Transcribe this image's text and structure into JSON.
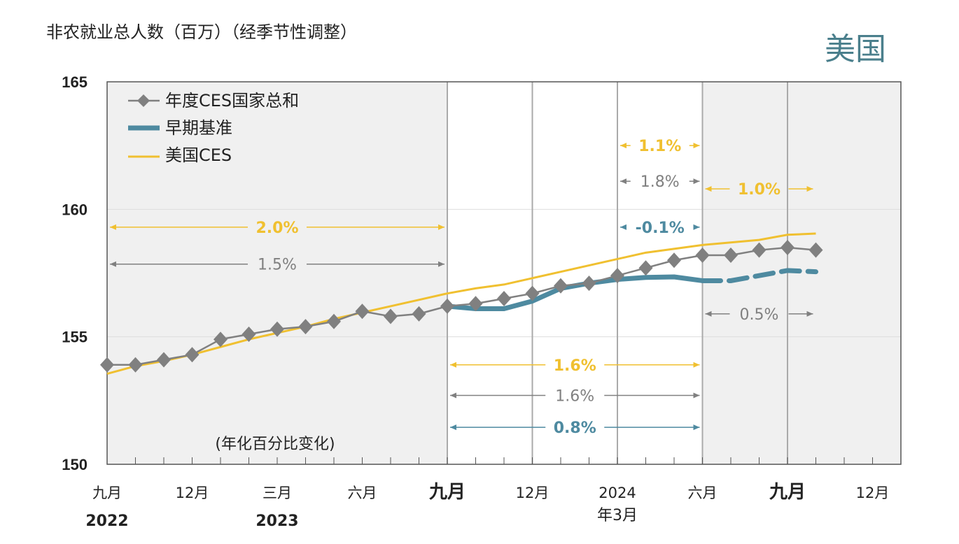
{
  "header": {
    "ytitle": "非农就业总人数（百万）（经季节性调整）",
    "country": "美国"
  },
  "chart_data": {
    "type": "line",
    "ylim": [
      150,
      165
    ],
    "yticks": [
      "150",
      "155",
      "160",
      "165"
    ],
    "x_months": [
      "2022-09",
      "2022-10",
      "2022-11",
      "2022-12",
      "2023-01",
      "2023-02",
      "2023-03",
      "2023-04",
      "2023-05",
      "2023-06",
      "2023-07",
      "2023-08",
      "2023-09",
      "2023-10",
      "2023-11",
      "2023-12",
      "2024-01",
      "2024-02",
      "2024-03",
      "2024-04",
      "2024-05",
      "2024-06",
      "2024-07",
      "2024-08",
      "2024-09",
      "2024-10"
    ],
    "xticks": [
      {
        "label": "九月",
        "sub": "2022",
        "month": 0
      },
      {
        "label": "12月",
        "sub": "",
        "month": 3
      },
      {
        "label": "三月",
        "sub": "2023",
        "month": 6
      },
      {
        "label": "六月",
        "sub": "",
        "month": 9
      },
      {
        "label": "九月",
        "sub": "",
        "month": 12
      },
      {
        "label": "12月",
        "sub": "",
        "month": 15
      },
      {
        "label": "2024",
        "sub": "年3月",
        "month": 18
      },
      {
        "label": "六月",
        "sub": "",
        "month": 21
      },
      {
        "label": "九月",
        "sub": "",
        "month": 24
      },
      {
        "label": "12月",
        "sub": "",
        "month": 27
      }
    ],
    "series": [
      {
        "name": "年度CES国家总和",
        "color": "#808080",
        "start": 0,
        "values": [
          153.9,
          153.9,
          154.1,
          154.3,
          154.9,
          155.1,
          155.3,
          155.4,
          155.6,
          156.0,
          155.8,
          155.9,
          156.2,
          156.3,
          156.5,
          156.7,
          157.0,
          157.1,
          157.4,
          157.7,
          158.0,
          158.2,
          158.2,
          158.4,
          158.5,
          158.4
        ]
      },
      {
        "name": "早期基准",
        "color": "#4e8aa0",
        "start": 12,
        "dashed_from": 21,
        "values": [
          156.2,
          156.1,
          156.1,
          156.4,
          156.9,
          157.1,
          157.25,
          157.33,
          157.35,
          157.2,
          157.2,
          157.4,
          157.6,
          157.55
        ]
      },
      {
        "name": "美国CES",
        "color": "#f0c030",
        "start": 0,
        "values": [
          153.55,
          153.85,
          154.05,
          154.3,
          154.6,
          154.9,
          155.15,
          155.4,
          155.7,
          155.95,
          156.2,
          156.45,
          156.7,
          156.9,
          157.05,
          157.3,
          157.55,
          157.8,
          158.05,
          158.3,
          158.45,
          158.6,
          158.7,
          158.8,
          159.0,
          159.05
        ]
      }
    ],
    "annotations": [
      {
        "label": "2.0%",
        "color": "#f0c030",
        "from": 0,
        "to": 12,
        "y": 159.3
      },
      {
        "label": "1.5%",
        "color": "#808080",
        "from": 0,
        "to": 12,
        "y": 157.85
      },
      {
        "label": "1.6%",
        "color": "#f0c030",
        "from": 12,
        "to": 21,
        "y": 153.9
      },
      {
        "label": "1.6%",
        "color": "#808080",
        "from": 12,
        "to": 21,
        "y": 152.7
      },
      {
        "label": "0.8%",
        "color": "#4e8aa0",
        "from": 12,
        "to": 21,
        "y": 151.45
      },
      {
        "label": "1.1%",
        "color": "#f0c030",
        "from": 18,
        "to": 21,
        "y": 162.5
      },
      {
        "label": "1.8%",
        "color": "#808080",
        "from": 18,
        "to": 21,
        "y": 161.1
      },
      {
        "label": "-0.1%",
        "color": "#4e8aa0",
        "from": 18,
        "to": 21,
        "y": 159.3
      },
      {
        "label": "1.0%",
        "color": "#f0c030",
        "from": 21,
        "to": 25,
        "y": 160.8
      },
      {
        "label": "0.5%",
        "color": "#808080",
        "from": 21,
        "to": 25,
        "y": 155.9
      }
    ],
    "note": "(年化百分比变化)"
  }
}
